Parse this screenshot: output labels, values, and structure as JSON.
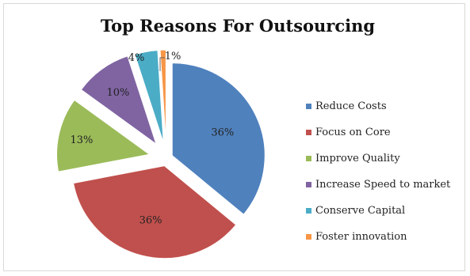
{
  "chart_data": {
    "type": "pie",
    "title": "Top Reasons For Outsourcing",
    "legend_position": "right",
    "slices": [
      {
        "label": "Reduce Costs",
        "value": 36,
        "value_label": "36%",
        "color": "#4f81bd"
      },
      {
        "label": "Focus on Core",
        "value": 36,
        "value_label": "36%",
        "color": "#c0504d"
      },
      {
        "label": "Improve Quality",
        "value": 13,
        "value_label": "13%",
        "color": "#9bbb59"
      },
      {
        "label": "Increase Speed to market",
        "value": 10,
        "value_label": "10%",
        "color": "#8064a2"
      },
      {
        "label": "Conserve Capital",
        "value": 4,
        "value_label": "4%",
        "color": "#4bacc6"
      },
      {
        "label": "Foster innovation",
        "value": 1,
        "value_label": "1%",
        "color": "#f79646"
      }
    ]
  }
}
